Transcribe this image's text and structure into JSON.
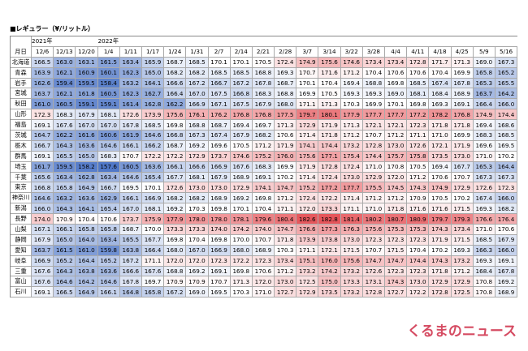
{
  "title": "■レギュラー（¥/リットル）",
  "corner": "月日",
  "years": [
    {
      "col": 0,
      "label": "2021年"
    },
    {
      "col": 3,
      "label": "2022年"
    }
  ],
  "columns": [
    "12/6",
    "12/13",
    "12/20",
    "1/4",
    "1/11",
    "1/17",
    "1/24",
    "1/31",
    "2/7",
    "2/14",
    "2/21",
    "2/28",
    "3/7",
    "3/14",
    "3/22",
    "3/28",
    "4/4",
    "4/11",
    "4/18",
    "4/25",
    "5/9",
    "5/16"
  ],
  "rows": [
    {
      "name": "北海道",
      "values": [
        "166.5",
        "163.0",
        "163.1",
        "161.5",
        "163.4",
        "165.9",
        "168.7",
        "168.5",
        "170.1",
        "170.1",
        "170.5",
        "172.4",
        "174.9",
        "175.6",
        "174.6",
        "173.4",
        "173.4",
        "172.8",
        "171.7",
        "171.3",
        "169.0",
        "167.3"
      ]
    },
    {
      "name": "青森",
      "values": [
        "163.9",
        "162.1",
        "160.9",
        "160.1",
        "162.3",
        "165.0",
        "168.2",
        "168.2",
        "168.5",
        "168.5",
        "168.8",
        "169.3",
        "170.7",
        "171.6",
        "171.2",
        "170.4",
        "170.6",
        "170.6",
        "170.4",
        "169.9",
        "165.8",
        "165.2"
      ]
    },
    {
      "name": "岩手",
      "values": [
        "162.6",
        "159.4",
        "159.5",
        "158.4",
        "163.2",
        "164.1",
        "166.6",
        "167.2",
        "166.7",
        "167.2",
        "167.8",
        "168.7",
        "170.1",
        "170.4",
        "169.4",
        "168.8",
        "169.8",
        "168.5",
        "167.4",
        "167.8",
        "165.3",
        "165.5"
      ]
    },
    {
      "name": "宮城",
      "values": [
        "163.7",
        "162.1",
        "161.8",
        "160.5",
        "162.3",
        "162.7",
        "166.4",
        "167.0",
        "167.5",
        "166.8",
        "168.3",
        "168.8",
        "169.9",
        "170.5",
        "169.3",
        "169.3",
        "169.0",
        "168.1",
        "168.4",
        "168.9",
        "163.7",
        "164.2"
      ]
    },
    {
      "name": "秋田",
      "values": [
        "161.0",
        "160.5",
        "159.1",
        "159.1",
        "161.4",
        "162.8",
        "162.2",
        "166.9",
        "167.1",
        "167.5",
        "167.9",
        "168.0",
        "171.1",
        "171.3",
        "170.3",
        "169.9",
        "170.1",
        "169.8",
        "169.3",
        "169.1",
        "166.4",
        "166.0"
      ]
    },
    {
      "name": "山形",
      "values": [
        "172.3",
        "168.3",
        "167.9",
        "168.1",
        "172.6",
        "173.9",
        "175.6",
        "176.1",
        "176.2",
        "176.8",
        "176.8",
        "177.5",
        "179.7",
        "180.1",
        "177.9",
        "177.7",
        "177.7",
        "177.2",
        "178.2",
        "176.8",
        "174.9",
        "174.4"
      ]
    },
    {
      "name": "福島",
      "values": [
        "169.1",
        "167.6",
        "167.0",
        "167.0",
        "167.8",
        "168.5",
        "169.8",
        "168.8",
        "168.7",
        "169.4",
        "169.7",
        "171.3",
        "172.9",
        "171.9",
        "171.3",
        "172.1",
        "172.1",
        "172.3",
        "171.8",
        "171.8",
        "169.4",
        "168.6"
      ]
    },
    {
      "name": "茨城",
      "values": [
        "164.7",
        "162.2",
        "161.6",
        "160.6",
        "161.9",
        "164.6",
        "166.8",
        "167.3",
        "167.4",
        "167.9",
        "168.2",
        "170.6",
        "171.4",
        "171.8",
        "171.2",
        "170.7",
        "171.2",
        "171.1",
        "171.0",
        "169.9",
        "168.3",
        "168.5"
      ]
    },
    {
      "name": "栃木",
      "values": [
        "166.7",
        "164.3",
        "163.6",
        "164.6",
        "166.1",
        "166.2",
        "168.7",
        "169.2",
        "169.6",
        "170.5",
        "171.2",
        "171.9",
        "174.1",
        "174.4",
        "173.2",
        "172.8",
        "173.0",
        "172.6",
        "172.1",
        "171.9",
        "169.6",
        "169.5"
      ]
    },
    {
      "name": "群馬",
      "values": [
        "169.1",
        "165.5",
        "165.0",
        "168.3",
        "170.7",
        "172.2",
        "172.2",
        "172.9",
        "173.7",
        "174.6",
        "175.2",
        "176.0",
        "175.6",
        "177.1",
        "175.4",
        "174.4",
        "175.7",
        "175.8",
        "173.5",
        "173.0",
        "171.0",
        "170.2"
      ]
    },
    {
      "name": "埼玉",
      "values": [
        "161.7",
        "159.5",
        "158.2",
        "157.6",
        "160.5",
        "163.6",
        "166.1",
        "166.6",
        "166.9",
        "167.6",
        "168.3",
        "169.9",
        "171.9",
        "172.8",
        "172.4",
        "171.0",
        "170.8",
        "170.5",
        "169.4",
        "167.7",
        "165.3",
        "164.4"
      ]
    },
    {
      "name": "千葉",
      "values": [
        "165.6",
        "163.4",
        "162.8",
        "163.4",
        "164.6",
        "165.4",
        "167.7",
        "168.1",
        "167.9",
        "168.9",
        "169.1",
        "170.2",
        "171.4",
        "172.4",
        "173.0",
        "172.9",
        "172.0",
        "171.2",
        "170.6",
        "170.7",
        "167.3",
        "167.3"
      ]
    },
    {
      "name": "東京",
      "values": [
        "166.8",
        "165.8",
        "164.9",
        "166.7",
        "169.5",
        "170.1",
        "172.6",
        "173.0",
        "173.0",
        "172.9",
        "174.1",
        "174.7",
        "175.2",
        "177.2",
        "177.7",
        "175.5",
        "174.5",
        "174.3",
        "174.9",
        "172.9",
        "172.6",
        "172.3"
      ]
    },
    {
      "name": "神奈川",
      "values": [
        "164.6",
        "163.2",
        "163.6",
        "162.9",
        "166.1",
        "166.9",
        "168.2",
        "168.2",
        "168.9",
        "169.2",
        "169.8",
        "171.2",
        "172.4",
        "172.2",
        "171.4",
        "171.2",
        "171.2",
        "170.9",
        "170.5",
        "170.2",
        "167.4",
        "166.0"
      ]
    },
    {
      "name": "新潟",
      "values": [
        "166.0",
        "164.3",
        "164.1",
        "165.4",
        "167.0",
        "168.1",
        "169.2",
        "170.3",
        "169.8",
        "170.1",
        "170.4",
        "171.1",
        "172.0",
        "173.3",
        "171.1",
        "171.0",
        "171.8",
        "171.6",
        "171.6",
        "171.5",
        "169.3",
        "168.2"
      ]
    },
    {
      "name": "長野",
      "values": [
        "174.0",
        "170.9",
        "170.4",
        "170.6",
        "173.7",
        "175.9",
        "177.9",
        "178.0",
        "178.0",
        "178.1",
        "179.6",
        "180.4",
        "182.6",
        "182.8",
        "181.4",
        "180.2",
        "180.7",
        "180.9",
        "179.7",
        "179.3",
        "176.6",
        "176.4"
      ]
    },
    {
      "name": "山梨",
      "values": [
        "167.1",
        "166.1",
        "165.8",
        "165.8",
        "168.7",
        "170.0",
        "173.3",
        "173.3",
        "174.0",
        "174.2",
        "174.0",
        "174.7",
        "176.6",
        "177.3",
        "176.3",
        "175.6",
        "175.3",
        "175.3",
        "174.3",
        "173.4",
        "171.0",
        "170.6"
      ]
    },
    {
      "name": "静岡",
      "values": [
        "167.9",
        "165.0",
        "164.0",
        "163.4",
        "165.5",
        "167.7",
        "169.8",
        "170.4",
        "169.8",
        "170.0",
        "170.7",
        "171.8",
        "173.9",
        "173.8",
        "173.0",
        "172.3",
        "172.3",
        "172.3",
        "171.9",
        "171.5",
        "168.5",
        "167.9"
      ]
    },
    {
      "name": "愛知",
      "values": [
        "163.7",
        "161.5",
        "161.0",
        "159.8",
        "163.8",
        "166.4",
        "168.0",
        "167.0",
        "166.9",
        "168.0",
        "168.9",
        "170.3",
        "171.1",
        "172.1",
        "171.5",
        "170.7",
        "171.5",
        "170.4",
        "170.2",
        "169.3",
        "166.3",
        "166.0"
      ]
    },
    {
      "name": "岐阜",
      "values": [
        "166.9",
        "165.2",
        "164.4",
        "165.2",
        "167.2",
        "171.1",
        "172.0",
        "172.0",
        "172.3",
        "172.2",
        "172.3",
        "173.4",
        "175.1",
        "176.0",
        "175.6",
        "174.7",
        "174.7",
        "174.4",
        "174.3",
        "173.2",
        "169.3",
        "169.1"
      ]
    },
    {
      "name": "三重",
      "values": [
        "167.6",
        "164.3",
        "163.8",
        "163.6",
        "166.6",
        "167.6",
        "168.8",
        "169.2",
        "169.1",
        "169.8",
        "170.6",
        "171.2",
        "173.2",
        "174.2",
        "173.2",
        "172.6",
        "172.3",
        "172.3",
        "171.8",
        "171.2",
        "168.4",
        "167.8"
      ]
    },
    {
      "name": "富山",
      "values": [
        "167.6",
        "164.6",
        "164.2",
        "164.6",
        "167.8",
        "169.7",
        "170.9",
        "170.9",
        "170.7",
        "171.3",
        "172.0",
        "173.0",
        "172.5",
        "175.0",
        "173.3",
        "173.1",
        "174.3",
        "173.0",
        "172.9",
        "172.9",
        "170.8",
        "169.2"
      ]
    },
    {
      "name": "石川",
      "values": [
        "169.1",
        "166.5",
        "164.9",
        "166.1",
        "164.8",
        "165.8",
        "167.2",
        "169.0",
        "169.5",
        "170.3",
        "171.0",
        "172.7",
        "172.9",
        "173.5",
        "173.2",
        "172.8",
        "172.7",
        "172.2",
        "172.8",
        "172.5",
        "170.8",
        "168.9"
      ]
    }
  ],
  "logo": "くるまのニュース"
}
